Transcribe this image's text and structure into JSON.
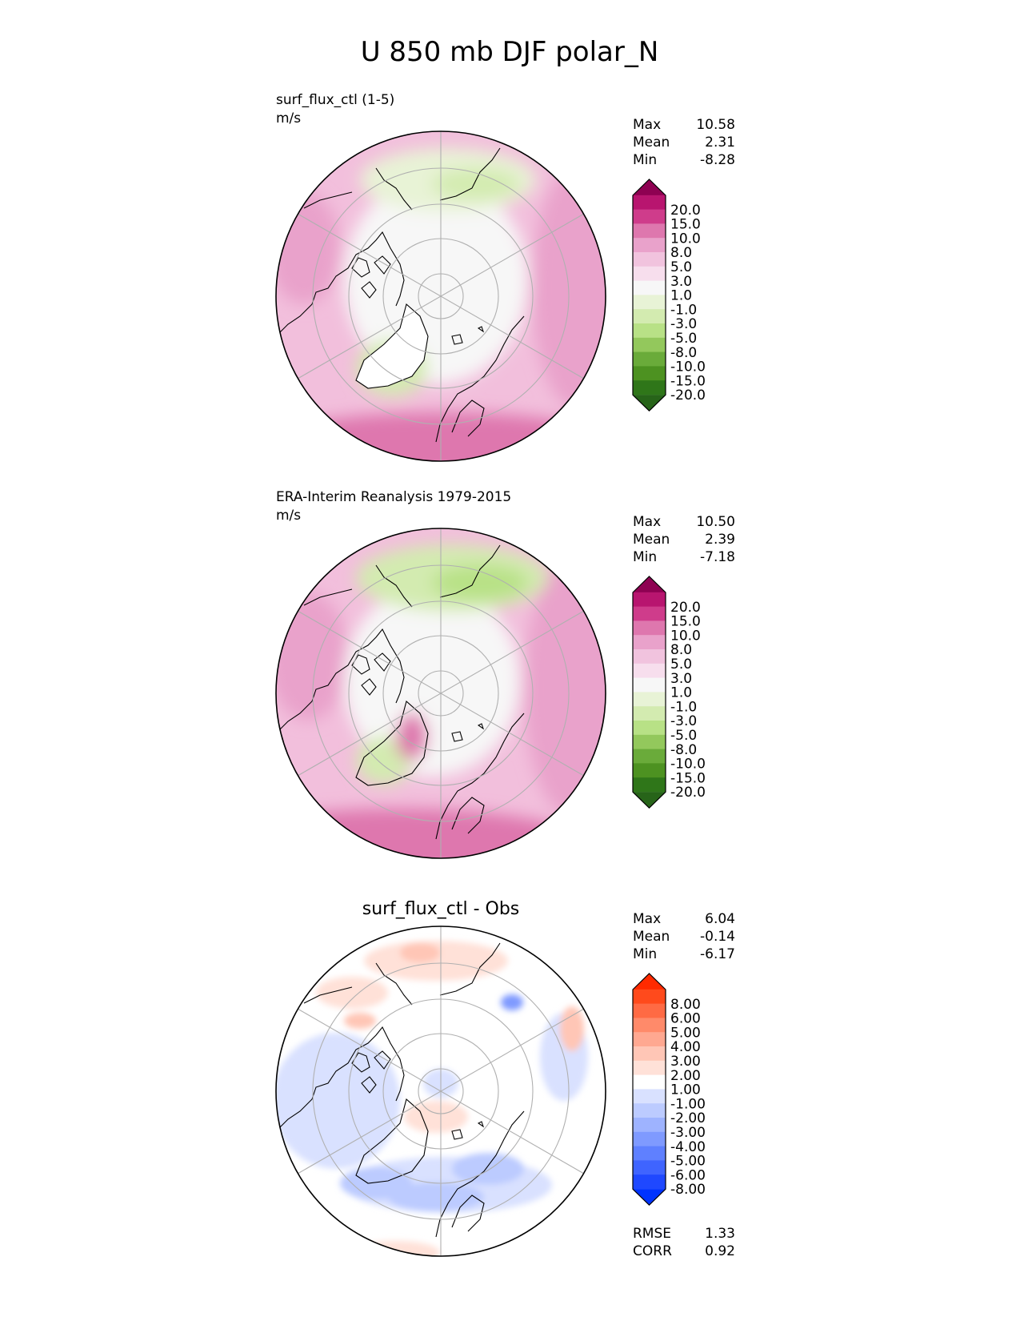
{
  "figure": {
    "title": "U 850 mb DJF polar_N"
  },
  "chart_data": [
    {
      "type": "heatmap",
      "projection": "north-polar-stereographic",
      "title": "",
      "subtitle_line1": "surf_flux_ctl (1-5)",
      "subtitle_line2": "m/s",
      "stats": [
        {
          "label": "Max",
          "value": "10.58"
        },
        {
          "label": "Mean",
          "value": "2.31"
        },
        {
          "label": "Min",
          "value": "-8.28"
        }
      ],
      "colorbar": {
        "levels": [
          "20.0",
          "15.0",
          "10.0",
          "8.0",
          "5.0",
          "3.0",
          "1.0",
          "-1.0",
          "-3.0",
          "-5.0",
          "-8.0",
          "-10.0",
          "-15.0",
          "-20.0"
        ],
        "colors": [
          "#8e0152",
          "#b8156f",
          "#cf3c8b",
          "#de77ae",
          "#e9a2cb",
          "#f1c3de",
          "#f7deed",
          "#f7f7f7",
          "#e8f3d6",
          "#d3ebb0",
          "#b8e186",
          "#93c85c",
          "#6aab3a",
          "#4d9221",
          "#2f7619",
          "#276419"
        ]
      },
      "footer_stats": []
    },
    {
      "type": "heatmap",
      "projection": "north-polar-stereographic",
      "title": "",
      "subtitle_line1": "ERA-Interim Reanalysis 1979-2015",
      "subtitle_line2": "m/s",
      "stats": [
        {
          "label": "Max",
          "value": "10.50"
        },
        {
          "label": "Mean",
          "value": "2.39"
        },
        {
          "label": "Min",
          "value": "-7.18"
        }
      ],
      "colorbar": {
        "levels": [
          "20.0",
          "15.0",
          "10.0",
          "8.0",
          "5.0",
          "3.0",
          "1.0",
          "-1.0",
          "-3.0",
          "-5.0",
          "-8.0",
          "-10.0",
          "-15.0",
          "-20.0"
        ],
        "colors": [
          "#8e0152",
          "#b8156f",
          "#cf3c8b",
          "#de77ae",
          "#e9a2cb",
          "#f1c3de",
          "#f7deed",
          "#f7f7f7",
          "#e8f3d6",
          "#d3ebb0",
          "#b8e186",
          "#93c85c",
          "#6aab3a",
          "#4d9221",
          "#2f7619",
          "#276419"
        ]
      },
      "footer_stats": []
    },
    {
      "type": "heatmap",
      "projection": "north-polar-stereographic",
      "title": "surf_flux_ctl - Obs",
      "subtitle_line1": "",
      "subtitle_line2": "",
      "stats": [
        {
          "label": "Max",
          "value": "6.04"
        },
        {
          "label": "Mean",
          "value": "-0.14"
        },
        {
          "label": "Min",
          "value": "-6.17"
        }
      ],
      "colorbar": {
        "levels": [
          "8.00",
          "6.00",
          "5.00",
          "4.00",
          "3.00",
          "2.00",
          "1.00",
          "-1.00",
          "-2.00",
          "-3.00",
          "-4.00",
          "-5.00",
          "-6.00",
          "-8.00"
        ],
        "colors": [
          "#ff2a00",
          "#ff4a1c",
          "#ff6a44",
          "#ff8a6a",
          "#ffa891",
          "#ffc6b6",
          "#ffe1d8",
          "#ffffff",
          "#d9e1ff",
          "#bccbff",
          "#9eb3ff",
          "#7f9aff",
          "#5f80ff",
          "#3f64ff",
          "#1f48ff",
          "#0033ff"
        ]
      },
      "footer_stats": [
        {
          "label": "RMSE",
          "value": "1.33"
        },
        {
          "label": "CORR",
          "value": "0.92"
        }
      ]
    }
  ],
  "colors": {
    "land_outline": "#000000",
    "grid": "#b0b0b0"
  }
}
